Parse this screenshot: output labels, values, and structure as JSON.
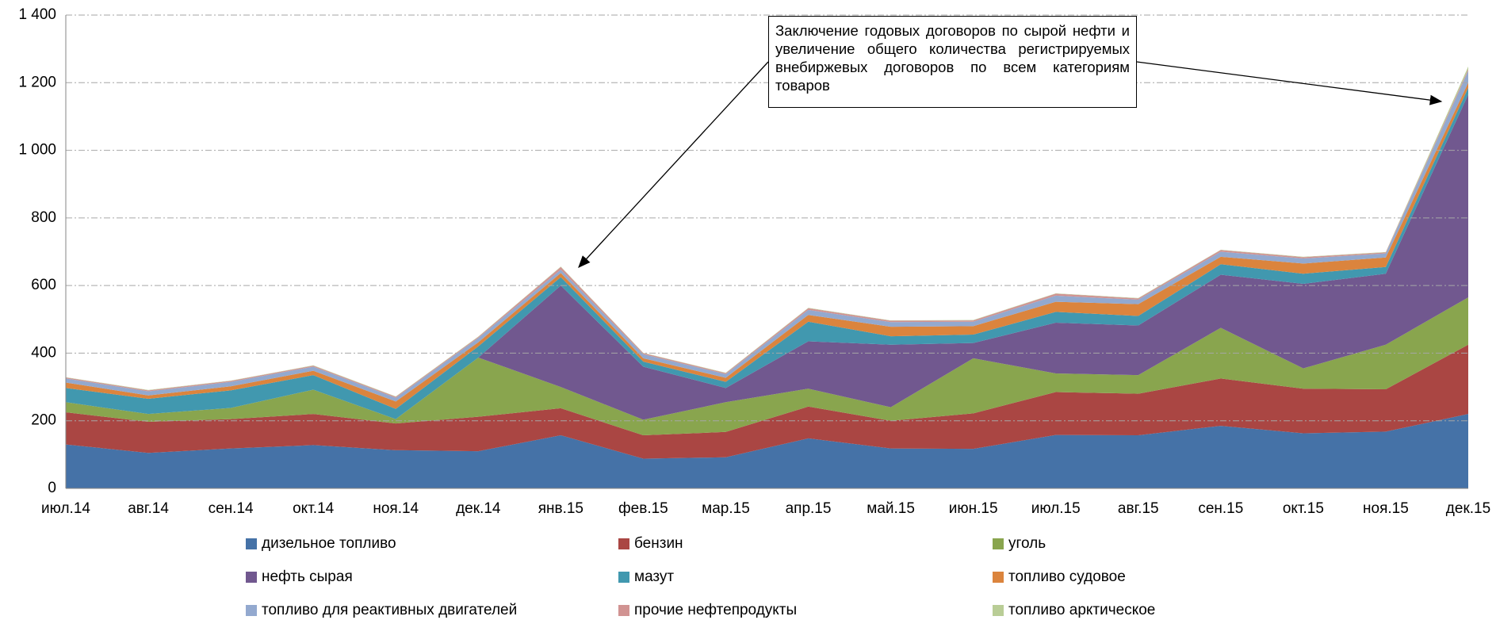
{
  "chart_data": {
    "type": "stacked_area",
    "categories": [
      "июл.14",
      "авг.14",
      "сен.14",
      "окт.14",
      "ноя.14",
      "дек.14",
      "янв.15",
      "фев.15",
      "мар.15",
      "апр.15",
      "май.15",
      "июн.15",
      "июл.15",
      "авг.15",
      "сен.15",
      "окт.15",
      "ноя.15",
      "дек.15"
    ],
    "series": [
      {
        "name": "дизельное топливо",
        "color": "#4572a7",
        "values": [
          130,
          105,
          118,
          128,
          113,
          110,
          157,
          88,
          92,
          148,
          118,
          117,
          158,
          157,
          185,
          163,
          168,
          220
        ]
      },
      {
        "name": "бензин",
        "color": "#aa4643",
        "values": [
          95,
          92,
          87,
          92,
          79,
          102,
          80,
          69,
          75,
          94,
          82,
          105,
          127,
          123,
          140,
          132,
          125,
          205
        ]
      },
      {
        "name": "уголь",
        "color": "#89a54e",
        "values": [
          30,
          23,
          33,
          72,
          13,
          175,
          63,
          46,
          88,
          53,
          40,
          163,
          55,
          55,
          150,
          60,
          132,
          140
        ]
      },
      {
        "name": "нефть сырая",
        "color": "#71588f",
        "values": [
          0,
          0,
          0,
          0,
          0,
          0,
          300,
          157,
          42,
          140,
          185,
          45,
          150,
          147,
          157,
          250,
          210,
          600
        ]
      },
      {
        "name": "мазут",
        "color": "#4198af",
        "values": [
          42,
          45,
          52,
          43,
          30,
          33,
          25,
          15,
          18,
          58,
          25,
          25,
          32,
          28,
          31,
          30,
          20,
          20
        ]
      },
      {
        "name": "топливо судовое",
        "color": "#db843d",
        "values": [
          16,
          10,
          12,
          13,
          22,
          12,
          12,
          10,
          12,
          20,
          28,
          25,
          30,
          35,
          22,
          30,
          28,
          15
        ]
      },
      {
        "name": "топливо для реактивных двигателей",
        "color": "#93a9cf",
        "values": [
          12,
          12,
          13,
          12,
          11,
          13,
          10,
          12,
          11,
          15,
          14,
          13,
          18,
          13,
          15,
          15,
          12,
          35
        ]
      },
      {
        "name": "прочие нефтепродукты",
        "color": "#d19392",
        "values": [
          3,
          3,
          3,
          3,
          3,
          3,
          8,
          3,
          3,
          5,
          4,
          4,
          6,
          4,
          5,
          4,
          3,
          5
        ]
      },
      {
        "name": "топливо арктическое",
        "color": "#b9cd96",
        "values": [
          1,
          1,
          1,
          1,
          1,
          1,
          1,
          1,
          1,
          1,
          1,
          1,
          1,
          1,
          1,
          1,
          1,
          8
        ]
      }
    ],
    "ylim": [
      0,
      1400
    ],
    "yticks": [
      0,
      200,
      400,
      600,
      800,
      {
        "value": 1000,
        "label": "1 000"
      },
      {
        "value": 1200,
        "label": "1 200"
      },
      {
        "value": 1400,
        "label": "1 400"
      }
    ],
    "grid": true,
    "legend": "bottom",
    "annotation": "Заключение годовых договоров по сырой нефти и увеличение общего количества регистрируемых внебиржевых договоров по всем категориям товаров"
  }
}
